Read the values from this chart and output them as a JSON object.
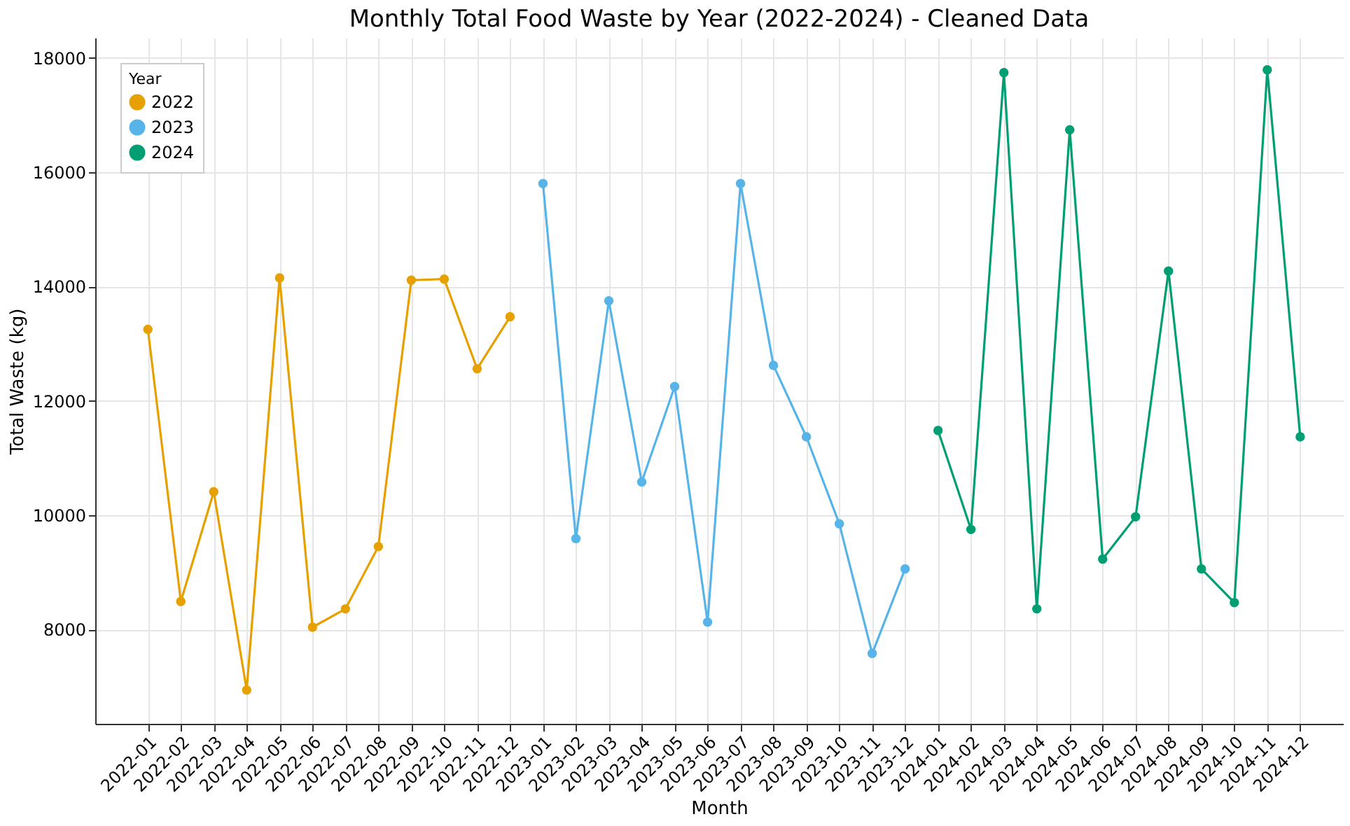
{
  "chart_data": {
    "type": "line",
    "title": "Monthly Total Food Waste by Year (2022-2024) - Cleaned Data",
    "xlabel": "Month",
    "ylabel": "Total Waste (kg)",
    "legend_title": "Year",
    "categories": [
      "2022-01",
      "2022-02",
      "2022-03",
      "2022-04",
      "2022-05",
      "2022-06",
      "2022-07",
      "2022-08",
      "2022-09",
      "2022-10",
      "2022-11",
      "2022-12",
      "2023-01",
      "2023-02",
      "2023-03",
      "2023-04",
      "2023-05",
      "2023-06",
      "2023-07",
      "2023-08",
      "2023-09",
      "2023-10",
      "2023-11",
      "2023-12",
      "2024-01",
      "2024-02",
      "2024-03",
      "2024-04",
      "2024-05",
      "2024-06",
      "2024-07",
      "2024-08",
      "2024-09",
      "2024-10",
      "2024-11",
      "2024-12"
    ],
    "series": [
      {
        "name": "2022",
        "color": "#e6a000",
        "values": [
          13250,
          8490,
          10410,
          6940,
          14150,
          8040,
          8360,
          9450,
          14110,
          14130,
          12560,
          13470,
          null,
          null,
          null,
          null,
          null,
          null,
          null,
          null,
          null,
          null,
          null,
          null,
          null,
          null,
          null,
          null,
          null,
          null,
          null,
          null,
          null,
          null,
          null,
          null
        ]
      },
      {
        "name": "2023",
        "color": "#56b4e9",
        "values": [
          null,
          null,
          null,
          null,
          null,
          null,
          null,
          null,
          null,
          null,
          null,
          null,
          15800,
          9590,
          13750,
          10580,
          12250,
          8130,
          15800,
          12620,
          11370,
          9850,
          7580,
          9060,
          null,
          null,
          null,
          null,
          null,
          null,
          null,
          null,
          null,
          null,
          null,
          null
        ]
      },
      {
        "name": "2024",
        "color": "#009e73",
        "values": [
          null,
          null,
          null,
          null,
          null,
          null,
          null,
          null,
          null,
          null,
          null,
          null,
          null,
          null,
          null,
          null,
          null,
          null,
          null,
          null,
          null,
          null,
          null,
          null,
          11480,
          9750,
          17740,
          8360,
          16740,
          9230,
          9970,
          14270,
          9060,
          8470,
          17790,
          11370
        ]
      }
    ],
    "ylim": [
      6350,
      18350
    ],
    "yticks": [
      8000,
      10000,
      12000,
      14000,
      16000,
      18000
    ],
    "grid": true,
    "legend": "top left",
    "marker": "circle",
    "line_style": "solid"
  }
}
